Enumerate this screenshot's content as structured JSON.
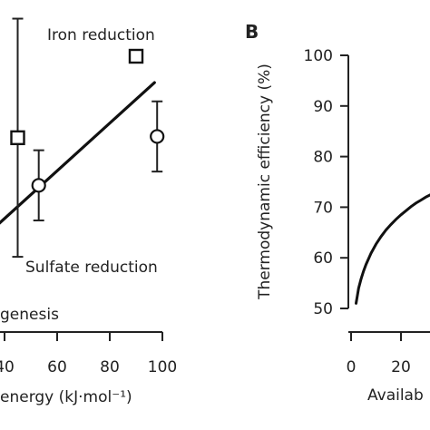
{
  "chart_data": [
    {
      "type": "scatter",
      "panel": "A",
      "xlabel": "energy (kJ·mol⁻¹)",
      "x_ticks": [
        "40",
        "60",
        "80",
        "100"
      ],
      "xlim": [
        35,
        100
      ],
      "ylim": [
        -45,
        180
      ],
      "series": [
        {
          "name": "Iron reduction",
          "marker": "square",
          "x": [
            45,
            90
          ],
          "y": [
            100,
            165
          ],
          "err_low": [
            95,
            0
          ],
          "err_high": [
            95,
            0
          ]
        },
        {
          "name": "Sulfate reduction",
          "marker": "circle",
          "x": [
            53,
            98
          ],
          "y": [
            62,
            101
          ],
          "err_low": [
            28,
            28
          ],
          "err_high": [
            28,
            28
          ]
        }
      ],
      "fit_line": {
        "x": [
          35,
          97
        ],
        "y": [
          26,
          144
        ]
      },
      "annotations": [
        "Iron reduction",
        "Sulfate reduction",
        "genesis"
      ]
    },
    {
      "type": "line",
      "panel": "B",
      "panel_label": "B",
      "ylabel": "Thermodynamic efficiency (%)",
      "xlabel": "Availab",
      "y_ticks": [
        "50",
        "60",
        "70",
        "80",
        "90",
        "100"
      ],
      "x_ticks": [
        "0",
        "20"
      ],
      "ylim": [
        50,
        100
      ],
      "xlim": [
        0,
        36
      ],
      "series": [
        {
          "x": [
            2,
            2.5,
            3,
            4,
            5,
            6,
            8,
            10,
            12,
            14,
            16,
            18,
            20,
            22,
            24,
            26,
            28,
            30,
            32,
            34,
            35.5
          ],
          "y": [
            51,
            52.5,
            54,
            55.8,
            57.4,
            58.7,
            60.9,
            62.7,
            64.2,
            65.5,
            66.6,
            67.6,
            68.5,
            69.3,
            70.1,
            70.8,
            71.4,
            72.0,
            72.5,
            72.9,
            73.2
          ]
        }
      ]
    }
  ]
}
